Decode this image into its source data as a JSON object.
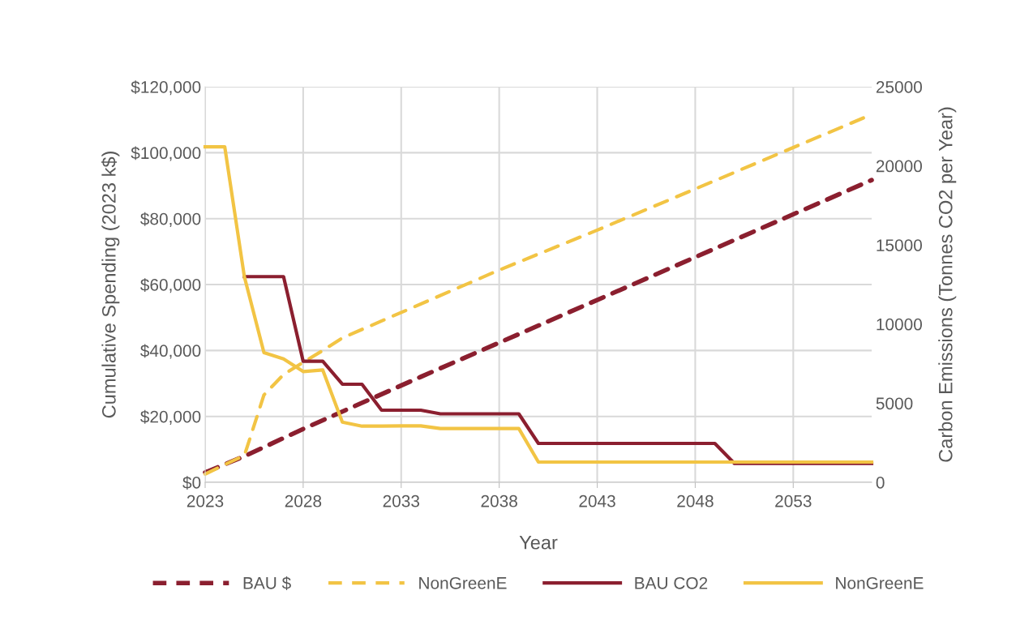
{
  "chart_data": {
    "type": "line",
    "xlabel": "Year",
    "ylabel": "Cumulative Spending (2023 k$)",
    "y2label": "Carbon Emissions (Tonnes CO2 per Year)",
    "xlim": [
      2023,
      2057
    ],
    "xticks": [
      2023,
      2028,
      2033,
      2038,
      2043,
      2048,
      2053
    ],
    "ylim": [
      0,
      120000
    ],
    "yticks": [
      {
        "value": 0,
        "label": "$0"
      },
      {
        "value": 20000,
        "label": "$20,000"
      },
      {
        "value": 40000,
        "label": "$40,000"
      },
      {
        "value": 60000,
        "label": "$60,000"
      },
      {
        "value": 80000,
        "label": "$80,000"
      },
      {
        "value": 100000,
        "label": "$100,000"
      },
      {
        "value": 120000,
        "label": "$120,000"
      }
    ],
    "y2lim": [
      0,
      25000
    ],
    "y2ticks": [
      0,
      5000,
      10000,
      15000,
      20000,
      25000
    ],
    "grid": true,
    "legend": "bottom",
    "marker": "none",
    "series": [
      {
        "name": "BAU $",
        "color": "#8b1f2f",
        "line_style": "dashed",
        "x": [
          2023,
          2025,
          2028,
          2034,
          2045,
          2057
        ],
        "values": [
          3000,
          7900,
          16200,
          32000,
          60500,
          91700
        ]
      },
      {
        "name": "NonGreenE",
        "color": "#f2c444",
        "line_style": "dashed",
        "x": [
          2023,
          2024,
          2025,
          2026,
          2027,
          2028,
          2029,
          2030,
          2038,
          2043,
          2048,
          2057
        ],
        "values": [
          2500,
          5400,
          8100,
          26500,
          32700,
          36400,
          40000,
          43800,
          64400,
          76500,
          89000,
          111600
        ]
      },
      {
        "name": "BAU CO2",
        "color": "#8b1f2f",
        "line_style": "solid",
        "axis": "y2",
        "x": [
          2025,
          2026,
          2027,
          2028,
          2029,
          2030,
          2031,
          2032,
          2033,
          2034,
          2035,
          2036,
          2037,
          2038,
          2039,
          2040,
          2049,
          2050,
          2057
        ],
        "values": [
          13000,
          13000,
          13000,
          7650,
          7650,
          6200,
          6200,
          4560,
          4560,
          4560,
          4330,
          4330,
          4330,
          4330,
          4330,
          2460,
          2460,
          1190,
          1190
        ]
      },
      {
        "name": "NonGreenE",
        "color": "#f2c444",
        "line_style": "solid",
        "axis": "y2",
        "x": [
          2023,
          2024,
          2025,
          2026,
          2027,
          2028,
          2029,
          2030,
          2031,
          2032,
          2033,
          2034,
          2035,
          2036,
          2037,
          2038,
          2039,
          2040,
          2057
        ],
        "values": [
          21200,
          21200,
          13000,
          8200,
          7800,
          7000,
          7100,
          3800,
          3550,
          3550,
          3570,
          3570,
          3400,
          3400,
          3400,
          3400,
          3400,
          1280,
          1280
        ]
      }
    ]
  }
}
